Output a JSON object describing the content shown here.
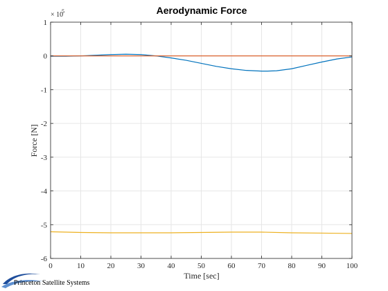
{
  "chart_data": {
    "type": "line",
    "title": "Aerodynamic Force",
    "xlabel": "Time [sec]",
    "ylabel": "Force [N]",
    "y_exponent_base": "× 10",
    "y_exponent_power": "5",
    "xlim": [
      0,
      100
    ],
    "ylim": [
      -6,
      1
    ],
    "x_ticks": [
      0,
      10,
      20,
      30,
      40,
      50,
      60,
      70,
      80,
      90,
      100
    ],
    "y_ticks": [
      1,
      0,
      -1,
      -2,
      -3,
      -4,
      -5,
      -6
    ],
    "grid": true,
    "series": [
      {
        "color": "#0072bd",
        "x": [
          0,
          5,
          10,
          15,
          20,
          25,
          30,
          35,
          40,
          45,
          50,
          55,
          60,
          65,
          70,
          72,
          75,
          80,
          85,
          90,
          95,
          100
        ],
        "y": [
          -0.01,
          -0.01,
          0.0,
          0.02,
          0.04,
          0.05,
          0.04,
          0.0,
          -0.06,
          -0.13,
          -0.22,
          -0.31,
          -0.38,
          -0.43,
          -0.45,
          -0.45,
          -0.44,
          -0.38,
          -0.28,
          -0.18,
          -0.09,
          -0.03
        ]
      },
      {
        "color": "#d95319",
        "x": [
          0,
          25,
          50,
          75,
          100
        ],
        "y": [
          0.0,
          0.0,
          0.0,
          0.0,
          0.0
        ]
      },
      {
        "color": "#edb120",
        "x": [
          0,
          10,
          20,
          30,
          40,
          50,
          60,
          70,
          80,
          90,
          100
        ],
        "y": [
          -5.21,
          -5.23,
          -5.24,
          -5.24,
          -5.24,
          -5.23,
          -5.22,
          -5.22,
          -5.24,
          -5.25,
          -5.26
        ]
      }
    ]
  },
  "branding": {
    "company": "Princeton Satellite Systems",
    "logo_icon": "swoosh-logo-icon"
  }
}
